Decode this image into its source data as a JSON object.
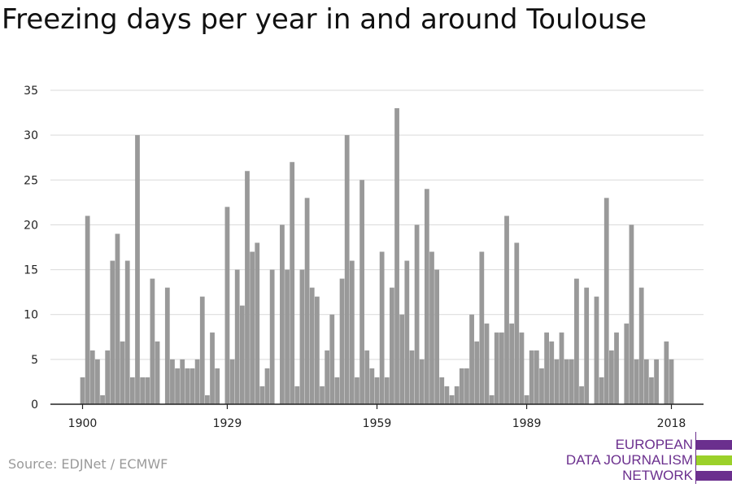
{
  "title": "Freezing days per year in and around Toulouse",
  "source": "Source: EDJNet / ECMWF",
  "logo": {
    "lines": [
      "EUROPEAN",
      "DATA JOURNALISM",
      "NETWORK"
    ],
    "colors": [
      "#6b2f8e",
      "#9bd12a",
      "#6b2f8e"
    ]
  },
  "chart_data": {
    "type": "bar",
    "title": "Freezing days per year in and around Toulouse",
    "xlabel": "",
    "ylabel": "",
    "ylim": [
      0,
      35
    ],
    "yticks": [
      0,
      5,
      10,
      15,
      20,
      25,
      30,
      35
    ],
    "xticks": [
      1900,
      1929,
      1959,
      1989,
      2018
    ],
    "grid": true,
    "bar_color": "#999999",
    "x": [
      1900,
      1901,
      1902,
      1903,
      1904,
      1905,
      1906,
      1907,
      1908,
      1909,
      1910,
      1911,
      1912,
      1913,
      1914,
      1915,
      1916,
      1917,
      1918,
      1919,
      1920,
      1921,
      1922,
      1923,
      1924,
      1925,
      1926,
      1927,
      1928,
      1929,
      1930,
      1931,
      1932,
      1933,
      1934,
      1935,
      1936,
      1937,
      1938,
      1939,
      1940,
      1941,
      1942,
      1943,
      1944,
      1945,
      1946,
      1947,
      1948,
      1949,
      1950,
      1951,
      1952,
      1953,
      1954,
      1955,
      1956,
      1957,
      1958,
      1959,
      1960,
      1961,
      1962,
      1963,
      1964,
      1965,
      1966,
      1967,
      1968,
      1969,
      1970,
      1971,
      1972,
      1973,
      1974,
      1975,
      1976,
      1977,
      1978,
      1979,
      1980,
      1981,
      1982,
      1983,
      1984,
      1985,
      1986,
      1987,
      1988,
      1989,
      1990,
      1991,
      1992,
      1993,
      1994,
      1995,
      1996,
      1997,
      1998,
      1999,
      2000,
      2001,
      2002,
      2003,
      2004,
      2005,
      2006,
      2007,
      2008,
      2009,
      2010,
      2011,
      2012,
      2013,
      2014,
      2015,
      2016,
      2017,
      2018
    ],
    "values": [
      3,
      21,
      6,
      5,
      1,
      6,
      16,
      19,
      7,
      16,
      3,
      30,
      3,
      3,
      14,
      7,
      0,
      13,
      5,
      4,
      5,
      4,
      4,
      5,
      12,
      1,
      8,
      4,
      0,
      22,
      5,
      15,
      11,
      26,
      17,
      18,
      2,
      4,
      15,
      0,
      20,
      15,
      27,
      2,
      15,
      23,
      13,
      12,
      2,
      6,
      10,
      3,
      14,
      30,
      16,
      3,
      25,
      6,
      4,
      3,
      17,
      3,
      13,
      33,
      10,
      16,
      6,
      20,
      5,
      24,
      17,
      15,
      3,
      2,
      1,
      2,
      4,
      4,
      10,
      7,
      17,
      9,
      1,
      8,
      8,
      21,
      9,
      18,
      8,
      1,
      6,
      6,
      4,
      8,
      7,
      5,
      8,
      5,
      5,
      14,
      2,
      13,
      0,
      12,
      3,
      23,
      6,
      8,
      0,
      9,
      20,
      5,
      13,
      5,
      3,
      5,
      0,
      7,
      5
    ]
  }
}
